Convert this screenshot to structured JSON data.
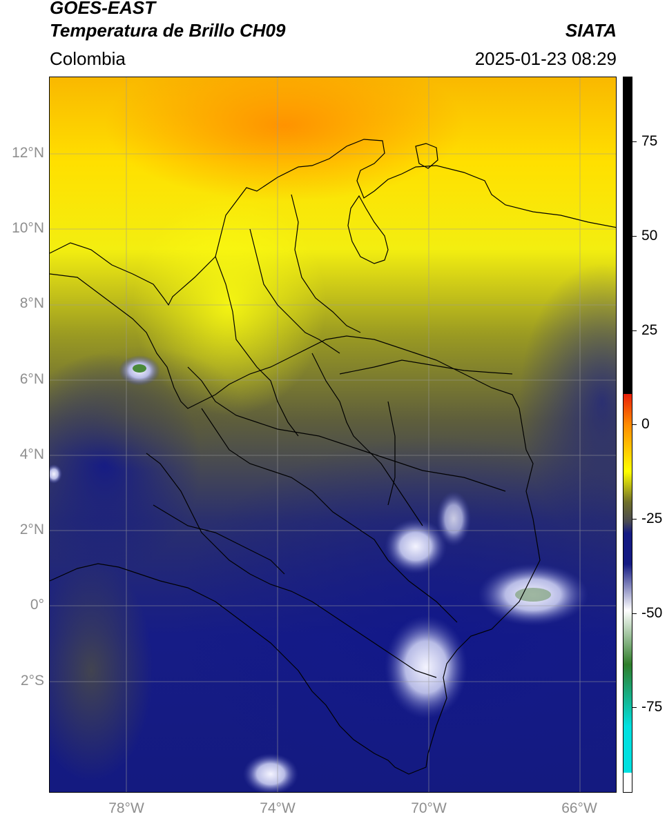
{
  "header": {
    "satellite": "GOES-EAST",
    "product": "Temperatura de Brillo CH09",
    "credit": "SIATA",
    "region": "Colombia",
    "timestamp": "2025-01-23 08:29"
  },
  "map": {
    "latitude_labels": [
      "12°N",
      "10°N",
      "8°N",
      "6°N",
      "4°N",
      "2°N",
      "0°",
      "2°S"
    ],
    "longitude_labels": [
      "78°W",
      "74°W",
      "70°W",
      "66°W"
    ],
    "extent": {
      "lon_min": -80,
      "lon_max": -65,
      "lat_min": -5,
      "lat_max": 14
    },
    "gridlines": true
  },
  "colorbar": {
    "ticks": [
      "75",
      "50",
      "25",
      "0",
      "-25",
      "-50",
      "-75"
    ],
    "range": [
      -95,
      90
    ],
    "colors": {
      "black": "#000000",
      "red": "#e8200a",
      "orange": "#ff8c00",
      "yellow": "#ffff00",
      "olive": "#6e6e2a",
      "gray": "#4a4a52",
      "navy": "#141a82",
      "white": "#ffffff",
      "green": "#2f7d2a",
      "cyan": "#00e0e0"
    }
  }
}
